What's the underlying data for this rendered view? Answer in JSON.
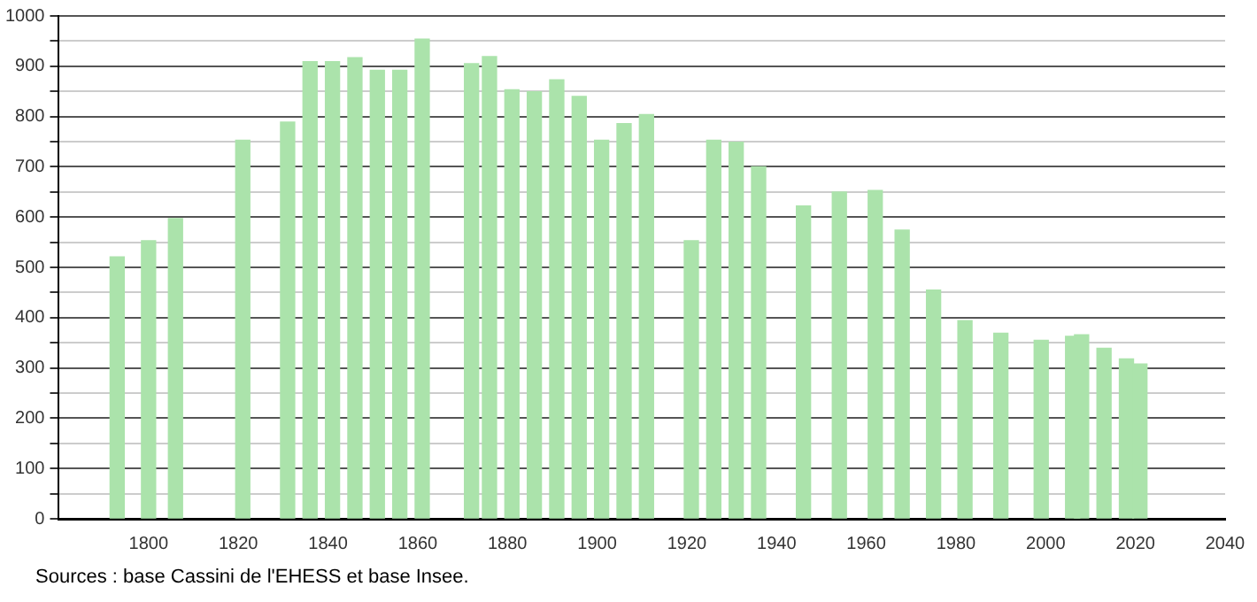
{
  "chart_data": {
    "type": "bar",
    "x": [
      1793,
      1800,
      1806,
      1821,
      1831,
      1836,
      1841,
      1846,
      1851,
      1856,
      1861,
      1872,
      1876,
      1881,
      1886,
      1891,
      1896,
      1901,
      1906,
      1911,
      1921,
      1926,
      1931,
      1936,
      1946,
      1954,
      1962,
      1968,
      1975,
      1982,
      1990,
      1999,
      2006,
      2008,
      2013,
      2018,
      2021
    ],
    "values": [
      521,
      553,
      597,
      753,
      789,
      909,
      909,
      917,
      892,
      892,
      954,
      905,
      919,
      853,
      849,
      873,
      840,
      753,
      786,
      804,
      553,
      753,
      749,
      700,
      622,
      650,
      653,
      574,
      455,
      394,
      369,
      355,
      363,
      366,
      339,
      318,
      308
    ],
    "color": "#abe3ab",
    "xlim": [
      1780,
      2040
    ],
    "xticks": [
      1800,
      1820,
      1840,
      1860,
      1880,
      1900,
      1920,
      1940,
      1960,
      1980,
      2000,
      2020,
      2040
    ],
    "ylim": [
      0,
      1000
    ],
    "yticks": [
      0,
      {
        "value": 50,
        "label": null
      },
      100,
      {
        "value": 150,
        "label": null
      },
      200,
      {
        "value": 250,
        "label": null
      },
      300,
      {
        "value": 350,
        "label": null
      },
      400,
      {
        "value": 450,
        "label": null
      },
      500,
      {
        "value": 550,
        "label": null
      },
      600,
      {
        "value": 650,
        "label": null
      },
      700,
      {
        "value": 750,
        "label": null
      },
      800,
      {
        "value": 850,
        "label": null
      },
      900,
      {
        "value": 950,
        "label": null
      },
      1000
    ],
    "grid": "y",
    "annotations": [
      "Sources : base Cassini de l'EHESS et base Insee."
    ]
  }
}
